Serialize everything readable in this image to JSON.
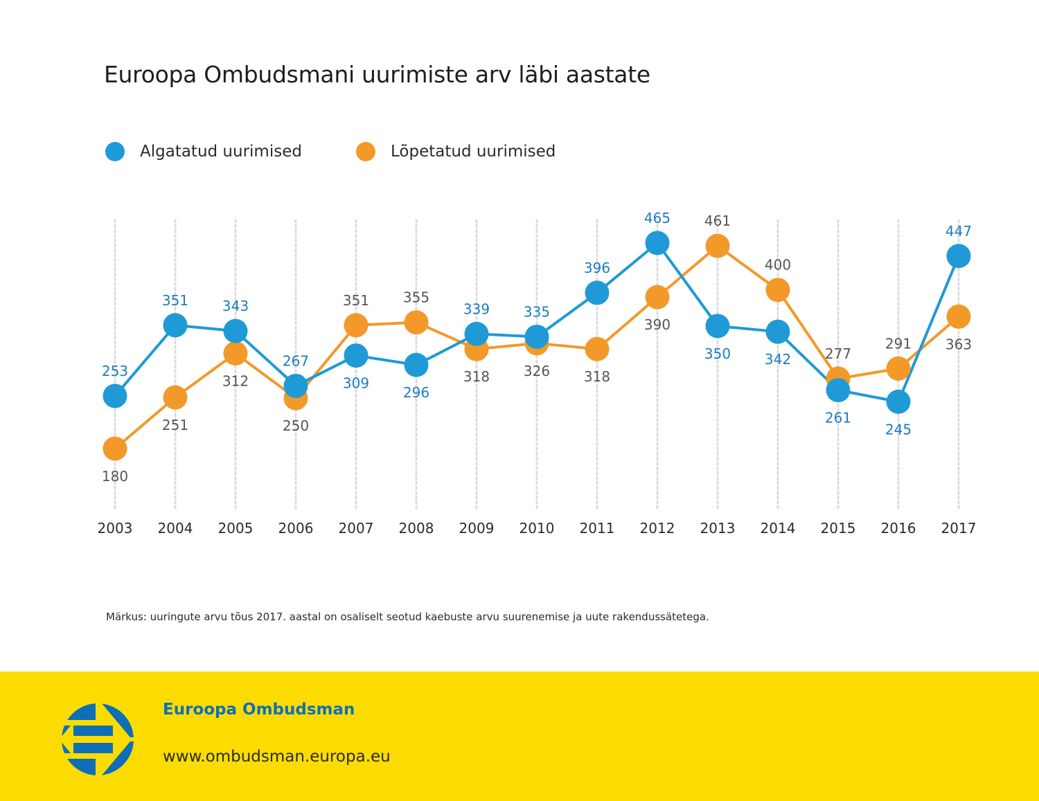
{
  "title": "Euroopa Ombudsmani uurimiste arv läbi aastate",
  "legend": [
    {
      "label": "Algatatud uurimised",
      "color": "#1f9ad6"
    },
    {
      "label": "Lõpetatud uurimised",
      "color": "#f2992a"
    }
  ],
  "note": "Märkus: uuringute arvu tõus 2017. aastal on osaliselt seotud kaebuste arvu suurenemise ja uute rakendussätetega.",
  "footer": {
    "name": "Euroopa Ombudsman",
    "url": "www.ombudsman.europa.eu",
    "background": "#fcdc00",
    "brand_color": "#0e6fb7"
  },
  "chart_data": {
    "type": "line",
    "title": "Euroopa Ombudsmani uurimiste arv läbi aastate",
    "xlabel": "",
    "ylabel": "",
    "categories": [
      "2003",
      "2004",
      "2005",
      "2006",
      "2007",
      "2008",
      "2009",
      "2010",
      "2011",
      "2012",
      "2013",
      "2014",
      "2015",
      "2016",
      "2017"
    ],
    "ylim": [
      180,
      465
    ],
    "grid": "vertical dotted",
    "legend_position": "top-left",
    "series": [
      {
        "name": "Algatatud uurimised",
        "color": "#1f9ad6",
        "label_color": "#1a7cc0",
        "values": [
          253,
          351,
          343,
          267,
          309,
          296,
          339,
          335,
          396,
          465,
          350,
          342,
          261,
          245,
          447
        ],
        "label_pos": [
          "above",
          "above",
          "above",
          "above",
          "below",
          "below",
          "above",
          "above",
          "above",
          "above",
          "below",
          "below",
          "below",
          "below",
          "above"
        ]
      },
      {
        "name": "Lõpetatud uurimised",
        "color": "#f2992a",
        "label_color": "#555555",
        "values": [
          180,
          251,
          312,
          250,
          351,
          355,
          318,
          326,
          318,
          390,
          461,
          400,
          277,
          291,
          363
        ],
        "label_pos": [
          "below",
          "below",
          "below",
          "below",
          "above",
          "above",
          "below",
          "below",
          "below",
          "below",
          "above",
          "above",
          "above",
          "above",
          "below"
        ]
      }
    ]
  }
}
